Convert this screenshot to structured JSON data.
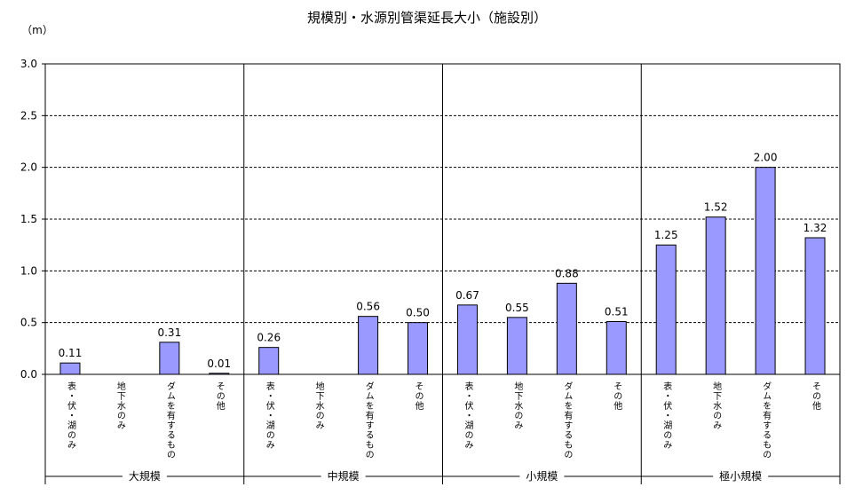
{
  "chart_data": {
    "type": "bar",
    "title": "規模別・水源別管渠延長大小（施設別）",
    "ylabel": "（m）",
    "ylim": [
      0,
      3.0
    ],
    "yticks": [
      "0.0",
      "0.5",
      "1.0",
      "1.5",
      "2.0",
      "2.5",
      "3.0"
    ],
    "grid": "dashed horizontal",
    "bar_color": "#9999ff",
    "groups": [
      {
        "name": "大規模",
        "categories": [
          "表・伏・湖のみ",
          "地下水のみ",
          "ダムを有するもの",
          "その他"
        ],
        "values": [
          0.11,
          null,
          0.31,
          0.01
        ],
        "labels": [
          "0.11",
          "",
          "0.31",
          "0.01"
        ]
      },
      {
        "name": "中規模",
        "categories": [
          "表・伏・湖のみ",
          "地下水のみ",
          "ダムを有するもの",
          "その他"
        ],
        "values": [
          0.26,
          null,
          0.56,
          0.5
        ],
        "labels": [
          "0.26",
          "",
          "0.56",
          "0.50"
        ]
      },
      {
        "name": "小規模",
        "categories": [
          "表・伏・湖のみ",
          "地下水のみ",
          "ダムを有するもの",
          "その他"
        ],
        "values": [
          0.67,
          0.55,
          0.88,
          0.51
        ],
        "labels": [
          "0.67",
          "0.55",
          "0.88",
          "0.51"
        ]
      },
      {
        "name": "極小規模",
        "categories": [
          "表・伏・湖のみ",
          "地下水のみ",
          "ダムを有するもの",
          "その他"
        ],
        "values": [
          1.25,
          1.52,
          2.0,
          1.32
        ],
        "labels": [
          "1.25",
          "1.52",
          "2.00",
          "1.32"
        ]
      }
    ]
  }
}
